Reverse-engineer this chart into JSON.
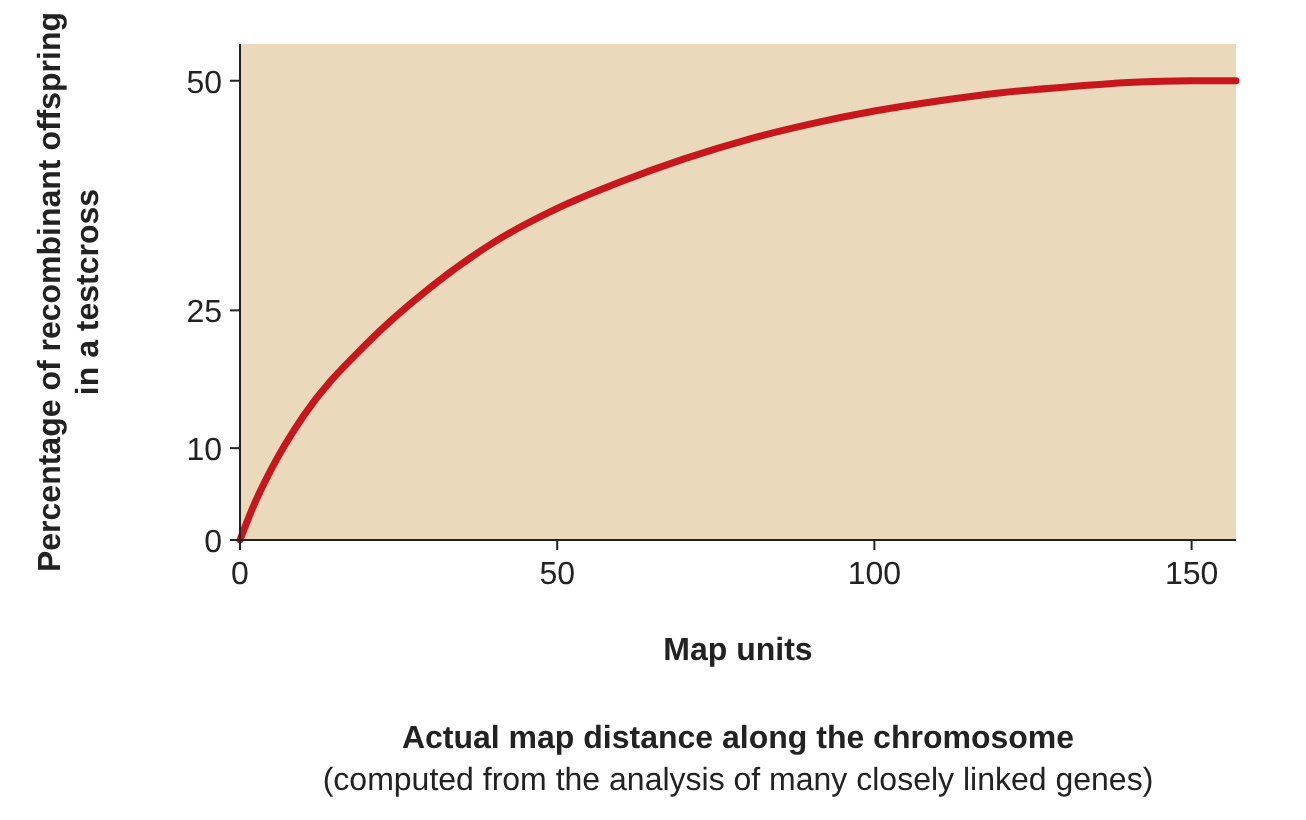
{
  "chart_data": {
    "type": "line",
    "xlabel": "Map units",
    "ylabel": "Percentage of recombinant offspring in a testcross",
    "x": [
      0,
      2,
      5,
      10,
      20,
      30,
      40,
      50,
      60,
      70,
      80,
      90,
      100,
      110,
      120,
      130,
      140,
      150,
      157
    ],
    "series": [
      {
        "color": "#c8161d",
        "values": [
          0,
          3.5,
          7.8,
          13.5,
          21.4,
          27.5,
          32.4,
          36.1,
          39,
          41.5,
          43.6,
          45.3,
          46.7,
          47.8,
          48.7,
          49.3,
          49.8,
          50,
          50
        ]
      }
    ],
    "xlim": [
      0,
      157
    ],
    "xticks": [
      0,
      50,
      100,
      150
    ],
    "ylim": [
      0,
      54
    ],
    "yticks": [
      0,
      10,
      25,
      50
    ],
    "grid": false,
    "marker": "none",
    "line_style": "solid",
    "annotations": [
      "Actual map distance along the chromosome",
      "(computed from the analysis of many closely linked genes)"
    ]
  }
}
